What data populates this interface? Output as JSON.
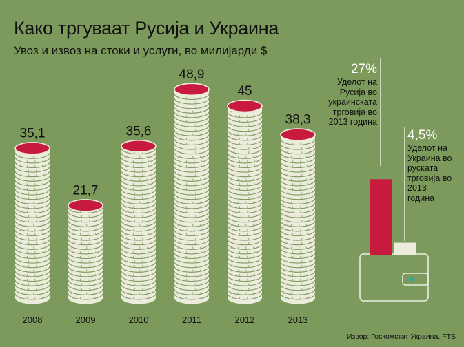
{
  "title": "Како тргуваат Русија и Украина",
  "subtitle": "Увоз и извоз на стоки и услуги, во милијарди $",
  "chart_data": {
    "type": "bar",
    "title": "Како тргуваат Русија и Украина",
    "subtitle": "Увоз и извоз на стоки и услуги, во милијарди $",
    "categories": [
      "2008",
      "2009",
      "2010",
      "2011",
      "2012",
      "2013"
    ],
    "values": [
      35.1,
      21.7,
      35.6,
      48.9,
      45,
      38.3
    ],
    "value_labels": [
      "35,1",
      "21,7",
      "35,6",
      "48,9",
      "45",
      "38,3"
    ],
    "ylim": [
      0,
      50
    ],
    "grid": false,
    "bar_style": "stacked coins",
    "colors": {
      "background": "#7d9a5d",
      "coin_top": "#c8193f",
      "coin_side": "#ececdc"
    }
  },
  "shares": [
    {
      "percent": "27%",
      "value": 27,
      "text": [
        "Уделот на",
        "Русија во",
        "украинската",
        "трговија во",
        "2013 година"
      ],
      "color": "#c8193f"
    },
    {
      "percent": "4,5%",
      "value": 4.5,
      "text": [
        "Уделот на",
        "Украина во",
        "руската",
        "трговија во",
        "2013",
        "година"
      ],
      "color": "#ececdc"
    }
  ],
  "source": "Извор: Госкомстат Украина, FTS"
}
